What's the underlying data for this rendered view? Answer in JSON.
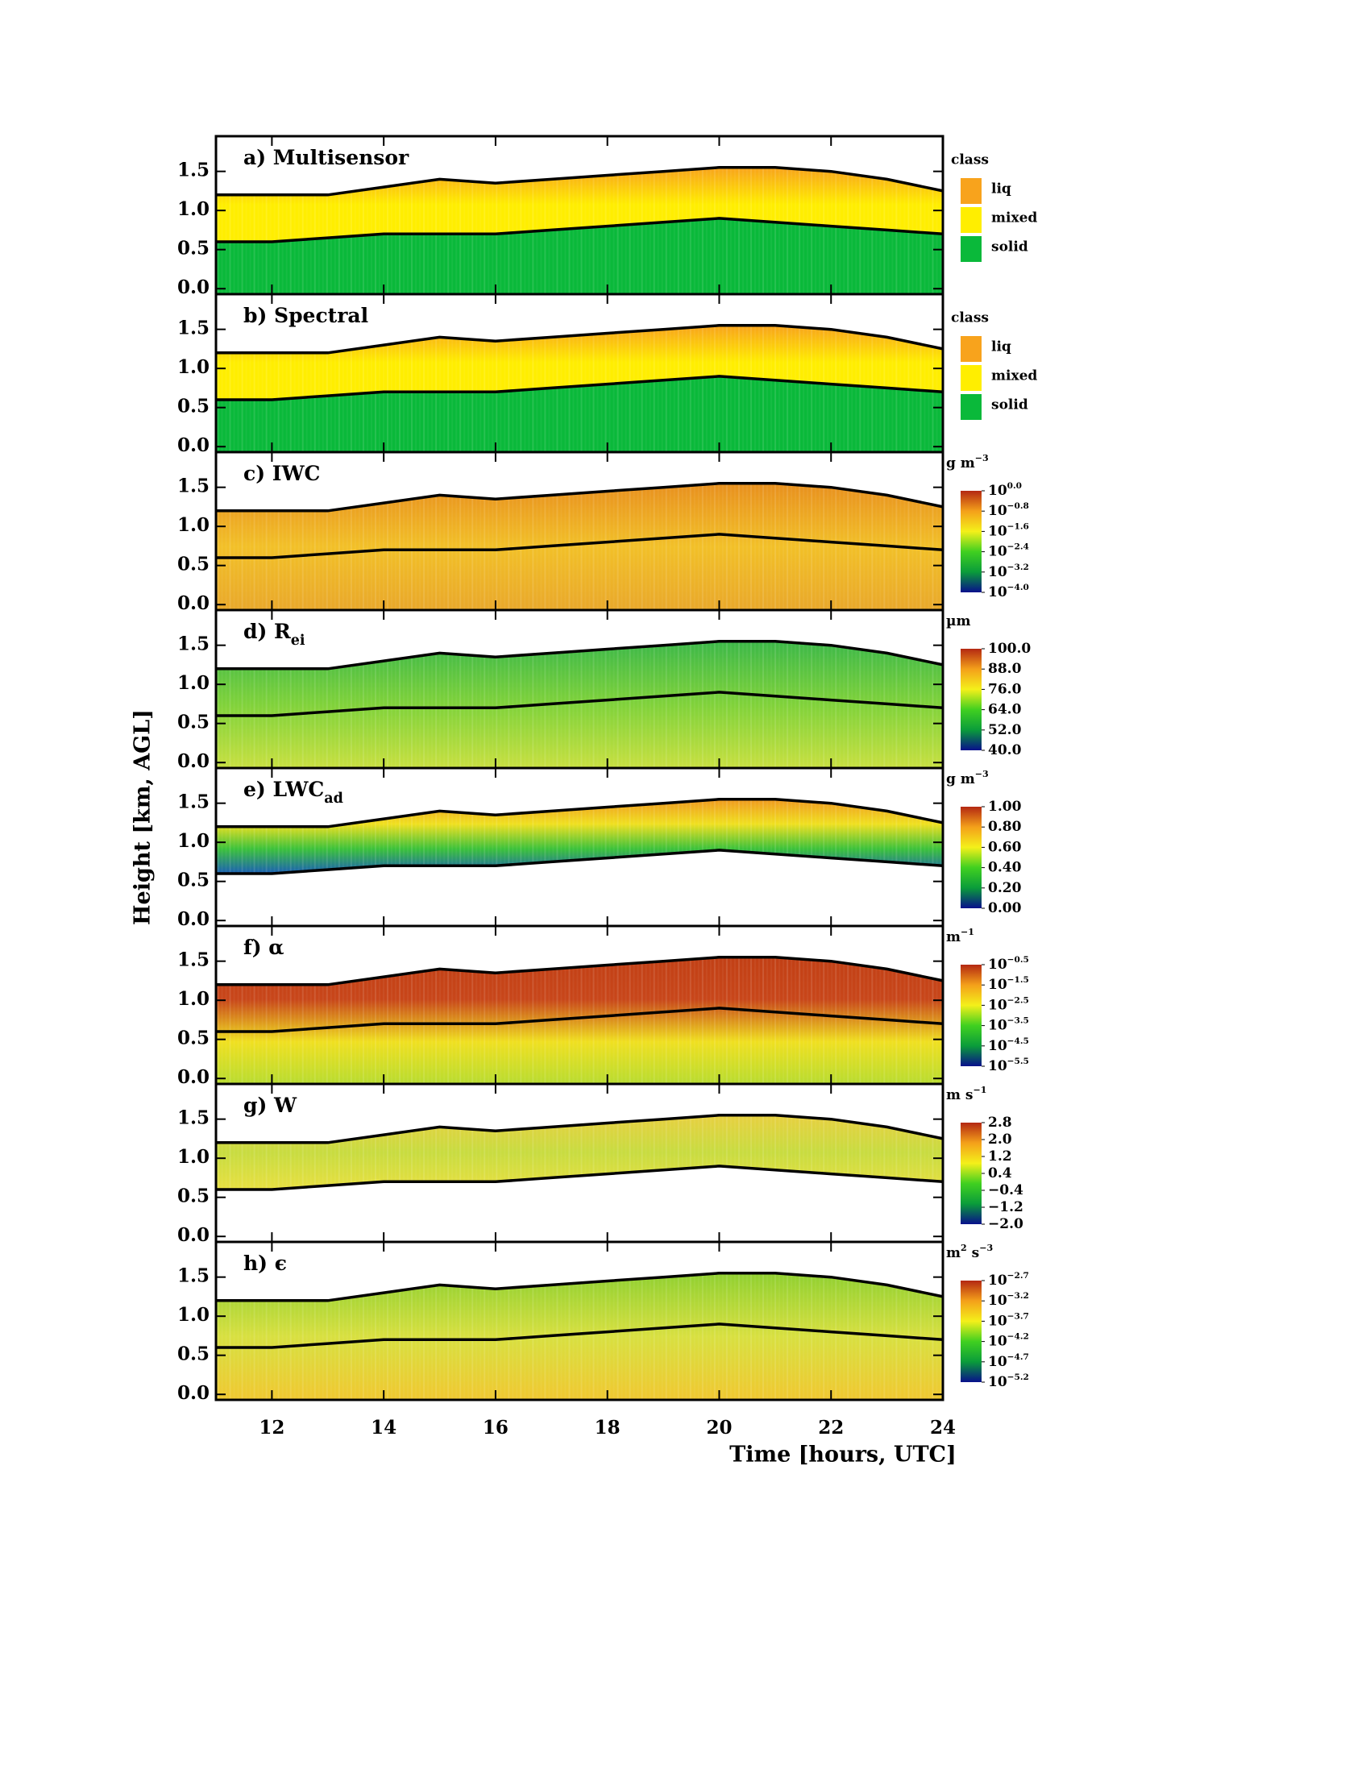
{
  "shared": {
    "xlabel": "Time [hours, UTC]",
    "ylabel": "Height [km, AGL]",
    "xlim": [
      11,
      24
    ],
    "xticks": [
      12,
      14,
      16,
      18,
      20,
      22,
      24
    ],
    "ylim": [
      -0.07,
      1.95
    ],
    "yticks": [
      {
        "value": 0,
        "label": "0.0"
      },
      0.5,
      {
        "value": 1,
        "label": "1.0"
      },
      1.5
    ],
    "x": [
      11,
      12,
      13,
      14,
      15,
      16,
      17,
      18,
      19,
      20,
      21,
      22,
      23,
      24
    ],
    "lines": [
      {
        "color": "#000000",
        "values": [
          1.2,
          1.2,
          1.2,
          1.3,
          1.4,
          1.35,
          1.4,
          1.45,
          1.5,
          1.55,
          1.55,
          1.5,
          1.4,
          1.25
        ]
      },
      {
        "color": "#000000",
        "values": [
          0.6,
          0.6,
          0.65,
          0.7,
          0.7,
          0.7,
          0.75,
          0.8,
          0.85,
          0.9,
          0.85,
          0.8,
          0.75,
          0.7
        ]
      }
    ]
  },
  "chart_data": [
    {
      "type": "class",
      "title": {
        "text": "a) Multisensor"
      },
      "legend_title": "class",
      "classes": [
        {
          "label": "liq",
          "color": "#f8a31c"
        },
        {
          "label": "mixed",
          "color": "#ffee00"
        },
        {
          "label": "solid",
          "color": "#0ab93a"
        }
      ]
    },
    {
      "type": "class",
      "title": {
        "text": "b) Spectral"
      },
      "legend_title": "class",
      "classes": [
        {
          "label": "liq",
          "color": "#f8a31c"
        },
        {
          "label": "mixed",
          "color": "#ffee00"
        },
        {
          "label": "solid",
          "color": "#0ab93a"
        }
      ]
    },
    {
      "type": "field",
      "extent": "full",
      "title": {
        "text": "c) IWC"
      },
      "field_colors": [
        "#e9a82a",
        "#f2c028",
        "#e8901e"
      ],
      "unit": [
        {
          "text": "g m",
          "sup": "−3"
        }
      ],
      "clim": [
        -4,
        0
      ],
      "cticks": [
        {
          "value": 0,
          "label": "10",
          "sup": "0.0"
        },
        {
          "value": -0.8,
          "label": "10",
          "sup": "−0.8"
        },
        {
          "value": -1.6,
          "label": "10",
          "sup": "−1.6"
        },
        {
          "value": -2.4,
          "label": "10",
          "sup": "−2.4"
        },
        {
          "value": -3.2,
          "label": "10",
          "sup": "−3.2"
        },
        {
          "value": -4,
          "label": "10",
          "sup": "−4.0"
        }
      ]
    },
    {
      "type": "field",
      "extent": "full",
      "title": {
        "text": "d) R",
        "sub": "ei"
      },
      "field_colors": [
        "#c8e040",
        "#80d23a",
        "#3cb848"
      ],
      "unit": [
        {
          "text": "µm"
        }
      ],
      "clim": [
        40,
        100
      ],
      "cticks": [
        {
          "value": 100,
          "label": "100.0"
        },
        {
          "value": 88,
          "label": "88.0"
        },
        {
          "value": 76,
          "label": "76.0"
        },
        {
          "value": 64,
          "label": "64.0"
        },
        {
          "value": 52,
          "label": "52.0"
        },
        {
          "value": 40,
          "label": "40.0"
        }
      ]
    },
    {
      "type": "field",
      "extent": "cloud",
      "title": {
        "text": "e) LWC",
        "sub": "ad"
      },
      "field_colors": [
        "#1a5fb4",
        "#3cc23a",
        "#f0e020",
        "#f09a20"
      ],
      "unit": [
        {
          "text": "g m",
          "sup": "−3"
        }
      ],
      "clim": [
        0,
        1
      ],
      "cticks": [
        {
          "value": 1,
          "label": "1.00"
        },
        {
          "value": 0.8,
          "label": "0.80"
        },
        {
          "value": 0.6,
          "label": "0.60"
        },
        {
          "value": 0.4,
          "label": "0.40"
        },
        {
          "value": 0.2,
          "label": "0.20"
        },
        {
          "value": 0,
          "label": "0.00"
        }
      ]
    },
    {
      "type": "field",
      "extent": "full",
      "title": {
        "text": "f) α"
      },
      "field_colors": [
        "#b8dc30",
        "#f0e020",
        "#c8461a",
        "#c24015"
      ],
      "unit": [
        {
          "text": "m",
          "sup": "−1"
        }
      ],
      "clim": [
        -5.5,
        -0.5
      ],
      "cticks": [
        {
          "value": -0.5,
          "label": "10",
          "sup": "−0.5"
        },
        {
          "value": -1.5,
          "label": "10",
          "sup": "−1.5"
        },
        {
          "value": -2.5,
          "label": "10",
          "sup": "−2.5"
        },
        {
          "value": -3.5,
          "label": "10",
          "sup": "−3.5"
        },
        {
          "value": -4.5,
          "label": "10",
          "sup": "−4.5"
        },
        {
          "value": -5.5,
          "label": "10",
          "sup": "−5.5"
        }
      ]
    },
    {
      "type": "field",
      "extent": "cloud",
      "title": {
        "text": "g) W"
      },
      "field_colors": [
        "#e8e040",
        "#c8dc40",
        "#e8d040"
      ],
      "unit": [
        {
          "text": "m s",
          "sup": "−1"
        }
      ],
      "clim": [
        -2,
        2.8
      ],
      "cticks": [
        {
          "value": 2.8,
          "label": "2.8"
        },
        {
          "value": 2,
          "label": "2.0"
        },
        {
          "value": 1.2,
          "label": "1.2"
        },
        {
          "value": 0.4,
          "label": "0.4"
        },
        {
          "value": -0.4,
          "label": "−0.4"
        },
        {
          "value": -1.2,
          "label": "−1.2"
        },
        {
          "value": -2,
          "label": "−2.0"
        }
      ]
    },
    {
      "type": "field",
      "extent": "full",
      "title": {
        "text": "h) ϵ"
      },
      "field_colors": [
        "#f0c830",
        "#d8e040",
        "#90d030"
      ],
      "unit": [
        {
          "text": "m",
          "sup": "2"
        },
        {
          "text": " s",
          "sup": "−3"
        }
      ],
      "clim": [
        -5.2,
        -2.7
      ],
      "cticks": [
        {
          "value": -2.7,
          "label": "10",
          "sup": "−2.7"
        },
        {
          "value": -3.2,
          "label": "10",
          "sup": "−3.2"
        },
        {
          "value": -3.7,
          "label": "10",
          "sup": "−3.7"
        },
        {
          "value": -4.2,
          "label": "10",
          "sup": "−4.2"
        },
        {
          "value": -4.7,
          "label": "10",
          "sup": "−4.7"
        },
        {
          "value": -5.2,
          "label": "10",
          "sup": "−5.2"
        }
      ]
    }
  ]
}
